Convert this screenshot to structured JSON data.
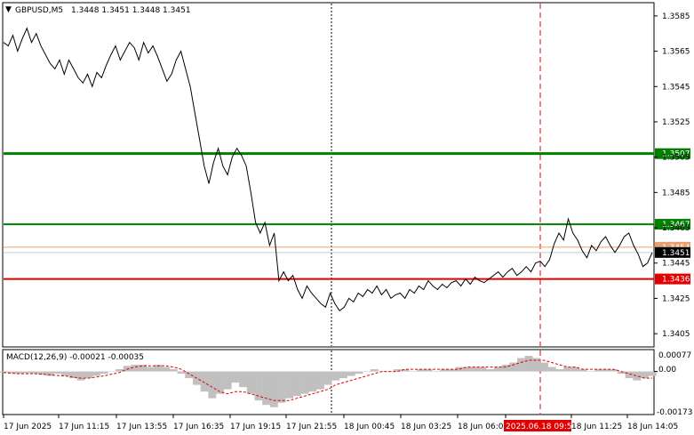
{
  "header": {
    "symbol": "GBPUSD,M5",
    "ohlc": "1.3448 1.3451 1.3448 1.3451"
  },
  "macd": {
    "label": "MACD(12,26,9) -0.00021 -0.00035",
    "axis_labels": [
      "0.00077",
      "0.00",
      "-0.00173"
    ]
  },
  "chart_data": {
    "type": "line",
    "price_axis": {
      "ticks": [
        "1.3585",
        "1.3565",
        "1.3545",
        "1.3525",
        "1.3505",
        "1.3485",
        "1.3465",
        "1.3445",
        "1.3425",
        "1.3405"
      ],
      "ylim": [
        1.3398,
        1.3592
      ]
    },
    "time_axis": {
      "labels": [
        "17 Jun 2025",
        "17 Jun 11:15",
        "17 Jun 13:55",
        "17 Jun 16:35",
        "17 Jun 19:15",
        "17 Jun 21:55",
        "18 Jun 00:45",
        "18 Jun 03:25",
        "18 Jun 06:05",
        "2025.06.18 09:55",
        "18 Jun 11:25",
        "18 Jun 14:05"
      ],
      "highlight": "2025.06.18 09:55"
    },
    "levels": [
      {
        "price": 1.3507,
        "label": "1.3507",
        "color": "#008000",
        "style": "thick"
      },
      {
        "price": 1.3467,
        "label": "1.3467",
        "color": "#008000",
        "style": "medium"
      },
      {
        "price": 1.3454,
        "label": "1.3454",
        "color": "#e8a070",
        "style": "thin"
      },
      {
        "price": 1.3451,
        "label": "1.3451",
        "color": "#cccccc",
        "style": "thin"
      },
      {
        "price": 1.3436,
        "label": "1.3436",
        "color": "#e00000",
        "style": "medium"
      }
    ],
    "series": [
      {
        "values": [
          1.357,
          1.3568,
          1.3574,
          1.3565,
          1.3572,
          1.3578,
          1.357,
          1.3575,
          1.3568,
          1.3563,
          1.3558,
          1.3555,
          1.356,
          1.3552,
          1.356,
          1.3555,
          1.355,
          1.3547,
          1.3552,
          1.3545,
          1.3553,
          1.355,
          1.3557,
          1.3563,
          1.3568,
          1.356,
          1.3565,
          1.357,
          1.3567,
          1.356,
          1.357,
          1.3564,
          1.3568,
          1.3562,
          1.3555,
          1.3548,
          1.3552,
          1.356,
          1.3565,
          1.3555,
          1.3545,
          1.353,
          1.3515,
          1.35,
          1.349,
          1.3502,
          1.351,
          1.35,
          1.3495,
          1.3505,
          1.351,
          1.3506,
          1.35,
          1.3485,
          1.3468,
          1.3462,
          1.3468,
          1.3455,
          1.3462,
          1.3435,
          1.344,
          1.3435,
          1.3438,
          1.343,
          1.3425,
          1.3432,
          1.3428,
          1.3425,
          1.3422,
          1.342,
          1.3428,
          1.3422,
          1.3418,
          1.342,
          1.3425,
          1.3423,
          1.3428,
          1.3426,
          1.343,
          1.3428,
          1.3432,
          1.3427,
          1.343,
          1.3425,
          1.3427,
          1.3428,
          1.3425,
          1.343,
          1.3428,
          1.3432,
          1.343,
          1.3435,
          1.3432,
          1.343,
          1.3433,
          1.3431,
          1.3434,
          1.3435,
          1.3432,
          1.3436,
          1.3433,
          1.3437,
          1.3435,
          1.3434,
          1.3436,
          1.3438,
          1.344,
          1.3437,
          1.344,
          1.3442,
          1.3438,
          1.344,
          1.3443,
          1.344,
          1.3445,
          1.3446,
          1.3443,
          1.3447,
          1.3456,
          1.3462,
          1.3458,
          1.347,
          1.3462,
          1.3458,
          1.3452,
          1.3448,
          1.3455,
          1.3452,
          1.3457,
          1.346,
          1.3455,
          1.3451,
          1.3455,
          1.346,
          1.3462,
          1.3455,
          1.345,
          1.3443,
          1.3445,
          1.3451
        ],
        "color": "#000000"
      }
    ],
    "macd_series": {
      "histogram": [
        -5e-05,
        -8e-05,
        -0.0001,
        -8e-05,
        -0.0001,
        -0.00015,
        -0.0002,
        -0.0001,
        -0.0002,
        -0.0003,
        -0.0004,
        -0.0003,
        -0.0002,
        -0.0001,
        0.0,
        0.0001,
        0.00025,
        0.0003,
        0.0003,
        0.0002,
        0.0003,
        0.0002,
        0.0001,
        -0.0001,
        -0.0003,
        -0.0006,
        -0.0009,
        -0.0012,
        -0.001,
        -0.0008,
        -0.0005,
        -0.0007,
        -0.001,
        -0.0013,
        -0.0015,
        -0.0016,
        -0.0014,
        -0.0012,
        -0.0011,
        -0.001,
        -0.0009,
        -0.0008,
        -0.0006,
        -0.0004,
        -0.0003,
        -0.0002,
        -0.0001,
        0.0,
        0.0001,
        0.0,
        0.0,
        0.0001,
        0.0001,
        0.0,
        0.0001,
        0.0001,
        0.0,
        0.0001,
        0.0001,
        0.0002,
        0.0002,
        0.0002,
        0.0002,
        0.0001,
        0.0002,
        0.0003,
        0.0004,
        0.0006,
        0.0007,
        0.0006,
        0.0004,
        0.0002,
        0.0001,
        0.0002,
        0.0002,
        0.0001,
        0.0,
        0.0001,
        0.0001,
        0.0001,
        -0.0001,
        -0.0003,
        -0.0004,
        -0.0003,
        -0.0002
      ],
      "signal": [
        -5e-05,
        -8e-05,
        -0.0001,
        -0.0001,
        -0.0001,
        -0.00012,
        -0.00015,
        -0.00018,
        -0.0002,
        -0.00025,
        -0.0003,
        -0.0003,
        -0.00025,
        -0.0002,
        -0.00012,
        -5e-05,
        0.0001,
        0.0002,
        0.00025,
        0.00025,
        0.00025,
        0.00025,
        0.0002,
        0.0001,
        -0.0001,
        -0.0003,
        -0.0005,
        -0.0007,
        -0.0009,
        -0.001,
        -0.0009,
        -0.0009,
        -0.001,
        -0.0011,
        -0.0012,
        -0.0013,
        -0.0013,
        -0.0013,
        -0.0012,
        -0.0011,
        -0.001,
        -0.0009,
        -0.0008,
        -0.0006,
        -0.0005,
        -0.0004,
        -0.0003,
        -0.0002,
        -0.0001,
        0.0,
        0.0,
        0.0,
        0.0001,
        0.0001,
        0.0001,
        0.0001,
        0.0001,
        0.0001,
        0.0001,
        0.0001,
        0.0002,
        0.0002,
        0.0002,
        0.0002,
        0.0002,
        0.0002,
        0.0003,
        0.0004,
        0.0005,
        0.0005,
        0.0005,
        0.0004,
        0.0003,
        0.0002,
        0.0002,
        0.0001,
        0.0001,
        0.0001,
        0.0001,
        0.0001,
        0.0,
        -0.0001,
        -0.0002,
        -0.0003,
        -0.0003
      ],
      "ylim": [
        -0.00185,
        0.0009
      ]
    }
  },
  "colors": {
    "background": "#ffffff",
    "price_line": "#000000",
    "grid": "#000000",
    "highlight_vline": "#e00000",
    "macd_hist": "#c0c0c0",
    "macd_signal": "#e00000",
    "current_price_bg": "#000000",
    "time_highlight_bg": "#e00000"
  }
}
